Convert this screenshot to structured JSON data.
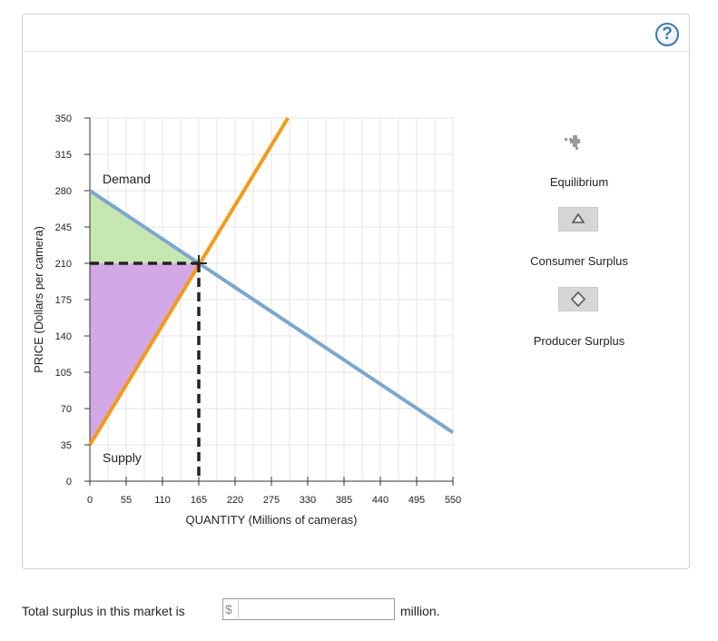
{
  "help": {
    "symbol": "?"
  },
  "chart_data": {
    "type": "line",
    "xlabel": "QUANTITY (Millions of cameras)",
    "ylabel": "PRICE (Dollars per camera)",
    "xlim": [
      0,
      550
    ],
    "ylim": [
      0,
      350
    ],
    "x_ticks": [
      0,
      55,
      110,
      165,
      220,
      275,
      330,
      385,
      440,
      495,
      550
    ],
    "y_ticks": [
      0,
      35,
      70,
      105,
      140,
      175,
      210,
      245,
      280,
      315,
      350
    ],
    "grid": true,
    "series": [
      {
        "name": "Demand",
        "color": "#7aa7d2",
        "points": [
          [
            0,
            280
          ],
          [
            550,
            47
          ]
        ]
      },
      {
        "name": "Supply",
        "color": "#f59a14",
        "points": [
          [
            0,
            35
          ],
          [
            300,
            350
          ]
        ]
      }
    ],
    "equilibrium": {
      "x": 165,
      "y": 210
    },
    "consumer_surplus": {
      "color": "#c5e8b0",
      "vertices": [
        [
          0,
          280
        ],
        [
          165,
          210
        ],
        [
          0,
          210
        ]
      ]
    },
    "producer_surplus": {
      "color": "#d3a8e6",
      "vertices": [
        [
          0,
          210
        ],
        [
          165,
          210
        ],
        [
          0,
          35
        ]
      ]
    }
  },
  "legend": {
    "equilibrium_label": "Equilibrium",
    "consumer_surplus_label": "Consumer Surplus",
    "producer_surplus_label": "Producer Surplus"
  },
  "question": {
    "prefix": "Total surplus in this market is",
    "currency": "$",
    "value": "",
    "suffix": "million."
  }
}
